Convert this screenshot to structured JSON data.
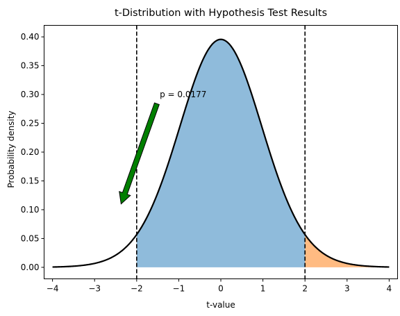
{
  "chart_data": {
    "type": "area",
    "title": "t-Distribution with Hypothesis Test Results",
    "xlabel": "t-value",
    "ylabel": "Probability density",
    "xlim": [
      -4.2,
      4.2
    ],
    "ylim": [
      -0.02,
      0.42
    ],
    "x_ticks": [
      -4,
      -3,
      -2,
      -1,
      0,
      1,
      2,
      3,
      4
    ],
    "x_tick_labels": [
      "−4",
      "−3",
      "−2",
      "−1",
      "0",
      "1",
      "2",
      "3",
      "4"
    ],
    "y_ticks": [
      0.0,
      0.05,
      0.1,
      0.15,
      0.2,
      0.25,
      0.3,
      0.35,
      0.4
    ],
    "y_tick_labels": [
      "0.00",
      "0.05",
      "0.10",
      "0.15",
      "0.20",
      "0.25",
      "0.30",
      "0.35",
      "0.40"
    ],
    "curve": {
      "x_range": [
        -4,
        4
      ],
      "peak": 0.398,
      "color": "#000000"
    },
    "regions": [
      {
        "x_range": [
          -2,
          2
        ],
        "color": "#8fbbdb"
      },
      {
        "x_range": [
          2,
          4
        ],
        "color": "#ffbb82"
      }
    ],
    "critical_values": [
      -2,
      2
    ],
    "annotation": {
      "text": "p = 0.0177",
      "text_xy": [
        -1.45,
        0.3
      ],
      "arrow_tail_xy": [
        -1.52,
        0.284
      ],
      "arrow_head_xy": [
        -2.37,
        0.11
      ],
      "arrow_color": "#007f00"
    },
    "grid": false
  }
}
